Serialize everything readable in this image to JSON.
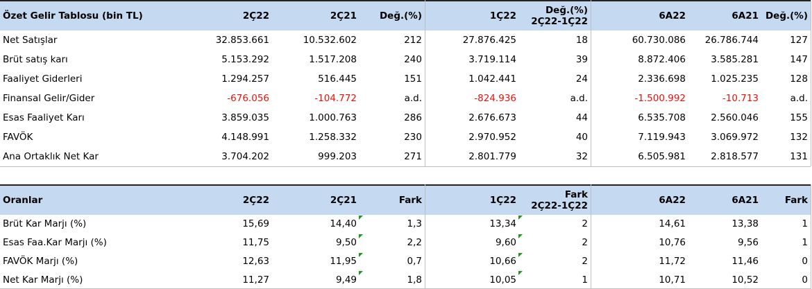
{
  "tables": [
    {
      "header": [
        "Özet Gelir Tablosu (bin TL)",
        "2Ç22",
        "2Ç21",
        "Değ.(%)",
        "1Ç22",
        [
          "Değ.(%)",
          "2Ç22-1Ç22"
        ],
        "6A22",
        "6A21",
        "Değ.(%)"
      ],
      "rows": [
        [
          "Net Satışlar",
          "32.853.661",
          "10.532.602",
          "212",
          "27.876.425",
          "18",
          "60.730.086",
          "26.786.744",
          "127"
        ],
        [
          "Brüt satış karı",
          "5.153.292",
          "1.517.208",
          "240",
          "3.719.114",
          "39",
          "8.872.406",
          "3.585.281",
          "147"
        ],
        [
          "Faaliyet Giderleri",
          "1.294.257",
          "516.445",
          "151",
          "1.042.441",
          "24",
          "2.336.698",
          "1.025.235",
          "128"
        ],
        [
          "Finansal Gelir/Gider",
          "-676.056",
          "-104.772",
          "a.d.",
          "-824.936",
          "a.d.",
          "-1.500.992",
          "-10.713",
          "a.d."
        ],
        [
          "Esas Faaliyet Karı",
          "3.859.035",
          "1.000.763",
          "286",
          "2.676.673",
          "44",
          "6.535.708",
          "2.560.046",
          "155"
        ],
        [
          "FAVÖK",
          "4.148.991",
          "1.258.332",
          "230",
          "2.970.952",
          "40",
          "7.119.943",
          "3.069.972",
          "132"
        ],
        [
          "Ana Ortaklık Net Kar",
          "3.704.202",
          "999.203",
          "271",
          "2.801.779",
          "32",
          "6.505.981",
          "2.818.577",
          "131"
        ]
      ]
    },
    {
      "header": [
        "Oranlar",
        "2Ç22",
        "2Ç21",
        "Fark",
        "1Ç22",
        [
          "Fark",
          "2Ç22-1Ç22"
        ],
        "6A22",
        "6A21",
        "Fark"
      ],
      "rows": [
        [
          "Brüt Kar Marjı (%)",
          "15,69",
          "14,40",
          "1,3",
          "13,34",
          "2",
          "14,61",
          "13,38",
          "1"
        ],
        [
          "Esas Faa.Kar Marjı (%)",
          "11,75",
          "9,50",
          "2,2",
          "9,60",
          "2",
          "10,76",
          "9,56",
          "1"
        ],
        [
          "FAVÖK Marjı (%)",
          "12,63",
          "11,95",
          "0,7",
          "10,66",
          "2",
          "11,72",
          "11,46",
          "0"
        ],
        [
          "Net Kar Marjı (%)",
          "11,27",
          "9,49",
          "1,8",
          "10,05",
          "1",
          "10,71",
          "10,52",
          "0"
        ]
      ]
    }
  ]
}
